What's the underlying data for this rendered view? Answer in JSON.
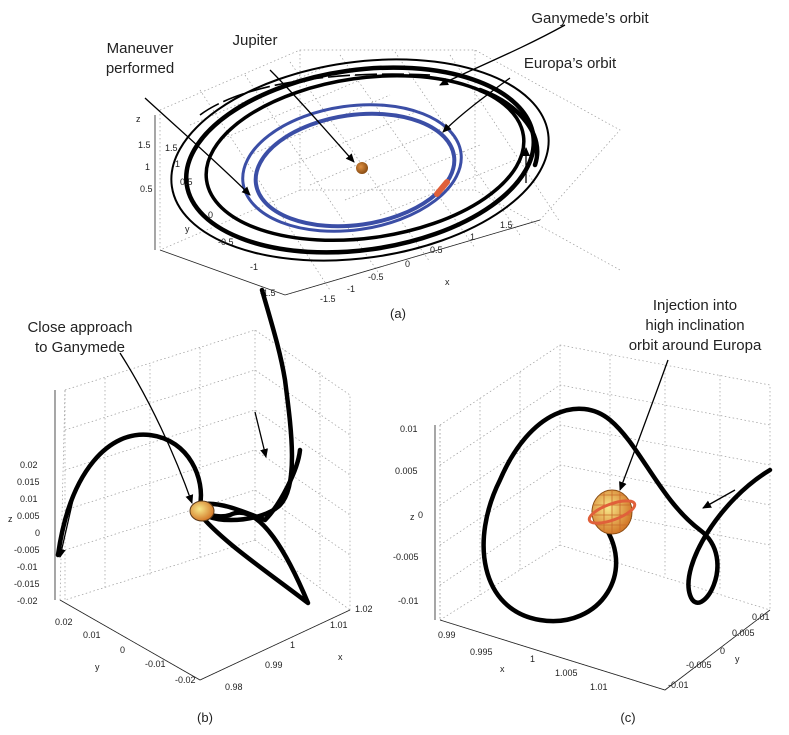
{
  "panel_a": {
    "caption": "(a)",
    "labels": {
      "ganymede_orbit": "Ganymede’s orbit",
      "europa_orbit": "Europa’s orbit",
      "jupiter": "Jupiter",
      "maneuver_line1": "Maneuver",
      "maneuver_line2": "performed"
    },
    "axes": {
      "x": "x",
      "y": "y",
      "z": "z"
    },
    "x_ticks": [
      "-1.5",
      "-1",
      "-0.5",
      "0",
      "0.5",
      "1",
      "1.5"
    ],
    "y_ticks": [
      "1.5",
      "1",
      "0.5",
      "0",
      "-0.5",
      "-1",
      "-1.5"
    ],
    "z_ticks": [
      "1.5",
      "1",
      "0.5"
    ],
    "colors": {
      "europa_orbit": "#3b4ea6",
      "jupiter": "#b8701c",
      "maneuver_marker": "#e0603a",
      "trajectory": "#000000"
    }
  },
  "panel_b": {
    "caption": "(b)",
    "labels": {
      "close_line1": "Close approach",
      "close_line2": "to Ganymede"
    },
    "axes": {
      "x": "x",
      "y": "y",
      "z": "z"
    },
    "z_ticks": [
      "0.02",
      "0.015",
      "0.01",
      "0.005",
      "0",
      "-0.005",
      "-0.01",
      "-0.015",
      "-0.02"
    ],
    "y_ticks": [
      "0.02",
      "0.01",
      "0",
      "-0.01",
      "-0.02"
    ],
    "x_ticks": [
      "1.02",
      "1.01",
      "1",
      "0.99",
      "0.98"
    ]
  },
  "panel_c": {
    "caption": "(c)",
    "labels": {
      "inj_line1": "Injection into",
      "inj_line2": "high inclination",
      "inj_line3": "orbit around Europa"
    },
    "axes": {
      "x": "x",
      "y": "y",
      "z": "z"
    },
    "z_ticks": [
      "0.01",
      "0.005",
      "0",
      "-0.005",
      "-0.01"
    ],
    "x_ticks": [
      "0.99",
      "0.995",
      "1",
      "1.005",
      "1.01"
    ],
    "y_ticks": [
      "0.01",
      "0.005",
      "0",
      "-0.005",
      "-0.01"
    ],
    "colors": {
      "sphere_base": "#f3d86a",
      "sphere_grid": "#c86a2a",
      "orbit_ring": "#e0603a"
    }
  }
}
